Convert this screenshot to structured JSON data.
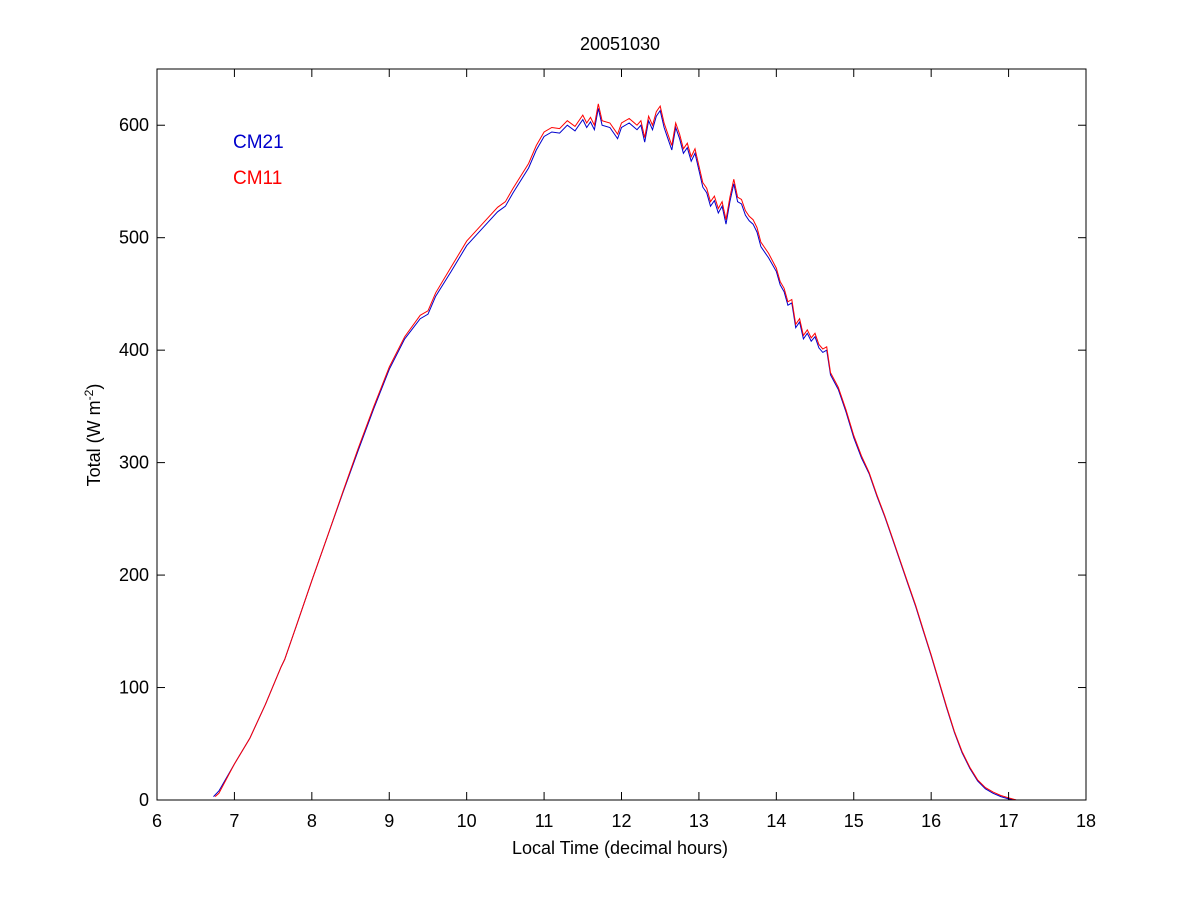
{
  "chart_data": {
    "type": "line",
    "title": "20051030",
    "xlabel": "Local Time (decimal hours)",
    "ylabel_main": "Total (W m",
    "ylabel_sup": "-2",
    "ylabel_close": ")",
    "xlim": [
      6,
      18
    ],
    "ylim": [
      0,
      650
    ],
    "xticks": [
      6,
      7,
      8,
      9,
      10,
      11,
      12,
      13,
      14,
      15,
      16,
      17,
      18
    ],
    "yticks": [
      0,
      100,
      200,
      300,
      400,
      500,
      600
    ],
    "grid": false,
    "legend_placement": "top-left",
    "series": [
      {
        "name": "CM21",
        "color": "#0000cc",
        "points": [
          [
            6.73,
            3
          ],
          [
            6.8,
            8
          ],
          [
            7.0,
            32
          ],
          [
            7.2,
            55
          ],
          [
            7.4,
            85
          ],
          [
            7.6,
            118
          ],
          [
            7.65,
            125
          ],
          [
            7.8,
            155
          ],
          [
            8.0,
            195
          ],
          [
            8.2,
            234
          ],
          [
            8.4,
            273
          ],
          [
            8.6,
            311
          ],
          [
            8.8,
            348
          ],
          [
            9.0,
            383
          ],
          [
            9.2,
            410
          ],
          [
            9.4,
            428
          ],
          [
            9.5,
            432
          ],
          [
            9.6,
            448
          ],
          [
            9.8,
            470
          ],
          [
            10.0,
            493
          ],
          [
            10.2,
            508
          ],
          [
            10.4,
            523
          ],
          [
            10.5,
            528
          ],
          [
            10.6,
            540
          ],
          [
            10.8,
            562
          ],
          [
            10.9,
            578
          ],
          [
            11.0,
            590
          ],
          [
            11.1,
            594
          ],
          [
            11.2,
            593
          ],
          [
            11.3,
            600
          ],
          [
            11.4,
            595
          ],
          [
            11.5,
            605
          ],
          [
            11.55,
            598
          ],
          [
            11.6,
            603
          ],
          [
            11.65,
            596
          ],
          [
            11.7,
            615
          ],
          [
            11.75,
            600
          ],
          [
            11.85,
            598
          ],
          [
            11.95,
            588
          ],
          [
            12.0,
            598
          ],
          [
            12.1,
            602
          ],
          [
            12.2,
            596
          ],
          [
            12.25,
            600
          ],
          [
            12.3,
            585
          ],
          [
            12.35,
            604
          ],
          [
            12.4,
            596
          ],
          [
            12.45,
            608
          ],
          [
            12.5,
            613
          ],
          [
            12.55,
            598
          ],
          [
            12.6,
            588
          ],
          [
            12.65,
            578
          ],
          [
            12.7,
            598
          ],
          [
            12.75,
            588
          ],
          [
            12.8,
            575
          ],
          [
            12.85,
            580
          ],
          [
            12.9,
            568
          ],
          [
            12.95,
            575
          ],
          [
            13.0,
            560
          ],
          [
            13.05,
            545
          ],
          [
            13.1,
            540
          ],
          [
            13.15,
            528
          ],
          [
            13.2,
            533
          ],
          [
            13.25,
            522
          ],
          [
            13.3,
            528
          ],
          [
            13.35,
            512
          ],
          [
            13.4,
            532
          ],
          [
            13.45,
            548
          ],
          [
            13.5,
            532
          ],
          [
            13.55,
            530
          ],
          [
            13.6,
            520
          ],
          [
            13.65,
            515
          ],
          [
            13.7,
            512
          ],
          [
            13.75,
            505
          ],
          [
            13.8,
            492
          ],
          [
            13.9,
            482
          ],
          [
            14.0,
            470
          ],
          [
            14.05,
            458
          ],
          [
            14.1,
            452
          ],
          [
            14.15,
            440
          ],
          [
            14.2,
            442
          ],
          [
            14.25,
            420
          ],
          [
            14.3,
            425
          ],
          [
            14.35,
            410
          ],
          [
            14.4,
            415
          ],
          [
            14.45,
            408
          ],
          [
            14.5,
            412
          ],
          [
            14.55,
            402
          ],
          [
            14.6,
            398
          ],
          [
            14.65,
            400
          ],
          [
            14.7,
            378
          ],
          [
            14.8,
            365
          ],
          [
            14.9,
            345
          ],
          [
            15.0,
            322
          ],
          [
            15.1,
            304
          ],
          [
            15.2,
            290
          ],
          [
            15.3,
            270
          ],
          [
            15.4,
            252
          ],
          [
            15.5,
            232
          ],
          [
            15.6,
            212
          ],
          [
            15.7,
            192
          ],
          [
            15.8,
            172
          ],
          [
            15.9,
            150
          ],
          [
            16.0,
            128
          ],
          [
            16.1,
            105
          ],
          [
            16.2,
            82
          ],
          [
            16.3,
            60
          ],
          [
            16.4,
            42
          ],
          [
            16.5,
            28
          ],
          [
            16.6,
            17
          ],
          [
            16.7,
            10
          ],
          [
            16.8,
            6
          ],
          [
            16.9,
            3
          ],
          [
            17.0,
            1
          ],
          [
            17.1,
            0
          ]
        ]
      },
      {
        "name": "CM11",
        "color": "#ff0000",
        "points": [
          [
            6.75,
            3
          ],
          [
            6.8,
            6
          ],
          [
            7.0,
            32
          ],
          [
            7.2,
            55
          ],
          [
            7.4,
            85
          ],
          [
            7.6,
            118
          ],
          [
            7.65,
            125
          ],
          [
            7.8,
            155
          ],
          [
            8.0,
            195
          ],
          [
            8.2,
            234
          ],
          [
            8.4,
            274
          ],
          [
            8.6,
            313
          ],
          [
            8.8,
            350
          ],
          [
            9.0,
            385
          ],
          [
            9.2,
            412
          ],
          [
            9.4,
            431
          ],
          [
            9.5,
            435
          ],
          [
            9.6,
            451
          ],
          [
            9.8,
            474
          ],
          [
            10.0,
            497
          ],
          [
            10.2,
            512
          ],
          [
            10.4,
            527
          ],
          [
            10.5,
            532
          ],
          [
            10.6,
            544
          ],
          [
            10.8,
            566
          ],
          [
            10.9,
            582
          ],
          [
            11.0,
            594
          ],
          [
            11.1,
            598
          ],
          [
            11.2,
            597
          ],
          [
            11.3,
            604
          ],
          [
            11.4,
            599
          ],
          [
            11.5,
            609
          ],
          [
            11.55,
            602
          ],
          [
            11.6,
            607
          ],
          [
            11.65,
            600
          ],
          [
            11.7,
            619
          ],
          [
            11.75,
            604
          ],
          [
            11.85,
            602
          ],
          [
            11.95,
            592
          ],
          [
            12.0,
            602
          ],
          [
            12.1,
            606
          ],
          [
            12.2,
            600
          ],
          [
            12.25,
            604
          ],
          [
            12.3,
            589
          ],
          [
            12.35,
            608
          ],
          [
            12.4,
            600
          ],
          [
            12.45,
            612
          ],
          [
            12.5,
            617
          ],
          [
            12.55,
            602
          ],
          [
            12.6,
            592
          ],
          [
            12.65,
            582
          ],
          [
            12.7,
            602
          ],
          [
            12.75,
            592
          ],
          [
            12.8,
            579
          ],
          [
            12.85,
            584
          ],
          [
            12.9,
            572
          ],
          [
            12.95,
            579
          ],
          [
            13.0,
            564
          ],
          [
            13.05,
            549
          ],
          [
            13.1,
            544
          ],
          [
            13.15,
            532
          ],
          [
            13.2,
            537
          ],
          [
            13.25,
            526
          ],
          [
            13.3,
            532
          ],
          [
            13.35,
            516
          ],
          [
            13.4,
            536
          ],
          [
            13.45,
            552
          ],
          [
            13.5,
            536
          ],
          [
            13.55,
            534
          ],
          [
            13.6,
            524
          ],
          [
            13.65,
            519
          ],
          [
            13.7,
            516
          ],
          [
            13.75,
            509
          ],
          [
            13.8,
            496
          ],
          [
            13.9,
            486
          ],
          [
            14.0,
            473
          ],
          [
            14.05,
            461
          ],
          [
            14.1,
            455
          ],
          [
            14.15,
            443
          ],
          [
            14.2,
            445
          ],
          [
            14.25,
            423
          ],
          [
            14.3,
            428
          ],
          [
            14.35,
            413
          ],
          [
            14.4,
            418
          ],
          [
            14.45,
            411
          ],
          [
            14.5,
            415
          ],
          [
            14.55,
            405
          ],
          [
            14.6,
            401
          ],
          [
            14.65,
            403
          ],
          [
            14.7,
            380
          ],
          [
            14.8,
            367
          ],
          [
            14.9,
            347
          ],
          [
            15.0,
            324
          ],
          [
            15.1,
            306
          ],
          [
            15.2,
            291
          ],
          [
            15.3,
            271
          ],
          [
            15.4,
            253
          ],
          [
            15.5,
            233
          ],
          [
            15.6,
            213
          ],
          [
            15.7,
            193
          ],
          [
            15.8,
            173
          ],
          [
            15.9,
            151
          ],
          [
            16.0,
            129
          ],
          [
            16.1,
            106
          ],
          [
            16.2,
            83
          ],
          [
            16.3,
            61
          ],
          [
            16.4,
            43
          ],
          [
            16.5,
            29
          ],
          [
            16.6,
            18
          ],
          [
            16.7,
            11
          ],
          [
            16.8,
            7
          ],
          [
            16.9,
            4
          ],
          [
            17.0,
            2
          ],
          [
            17.1,
            0
          ]
        ]
      }
    ]
  }
}
